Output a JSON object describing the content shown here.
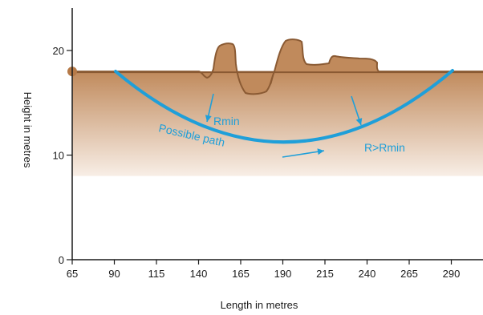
{
  "colors": {
    "ground": "#c08a5c",
    "ground_outline": "#8a5a33",
    "ground_fade_top": "#c08a5c",
    "ground_fade_bottom": "#f8eee6",
    "water": "#a9d7ef",
    "path": "#1f9fd9",
    "axis": "#1a1a1a",
    "point": "#b67a48"
  },
  "axes": {
    "xlabel": "Length in metres",
    "ylabel": "Height in metres",
    "xlim": [
      65,
      300
    ],
    "ylim": [
      0,
      24
    ],
    "x_ticks": [
      "65",
      "90",
      "115",
      "140",
      "165",
      "190",
      "215",
      "240",
      "265",
      "290"
    ],
    "y_ticks": [
      "0",
      "10",
      "20"
    ]
  },
  "annotations": {
    "rmin": "Rmin",
    "r_gt_rmin": "R>Rmin",
    "possible_path": "Possible path"
  },
  "ground": {
    "level": 18.0,
    "fade_bottom_level": 8.0
  }
}
